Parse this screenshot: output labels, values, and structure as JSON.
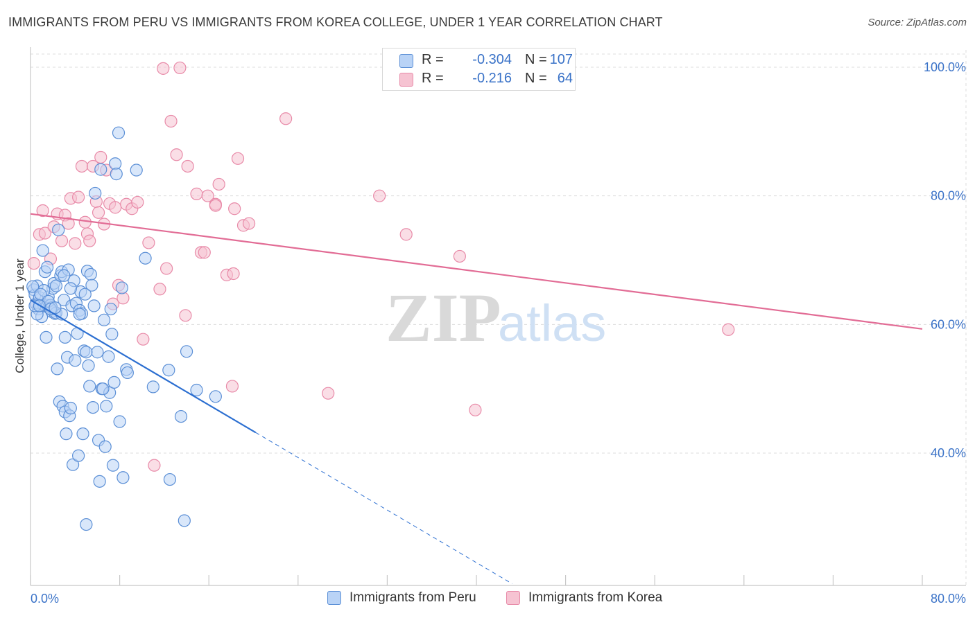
{
  "title": "IMMIGRANTS FROM PERU VS IMMIGRANTS FROM KOREA COLLEGE, UNDER 1 YEAR CORRELATION CHART",
  "source": "Source: ZipAtlas.com",
  "watermark": {
    "zip": "ZIP",
    "atlas": "atlas"
  },
  "legend": {
    "r_label": "R =",
    "n_label": "N =",
    "rows": [
      {
        "r": "-0.304",
        "n": "107"
      },
      {
        "r": "-0.216",
        "n": "64"
      }
    ]
  },
  "colors": {
    "peru_fill": "#b9d3f6",
    "peru_stroke": "#5b8fd6",
    "peru_line": "#2c6fd1",
    "korea_fill": "#f6c3d2",
    "korea_stroke": "#e88aa8",
    "korea_line": "#e26c95",
    "axis_label": "#3b73c8",
    "grid": "#dcdcdc"
  },
  "chart_data": {
    "type": "scatter",
    "title": "IMMIGRANTS FROM PERU VS IMMIGRANTS FROM KOREA COLLEGE, UNDER 1 YEAR CORRELATION CHART",
    "xlabel": "",
    "ylabel": "College, Under 1 year",
    "xlim": [
      0,
      80
    ],
    "ylim": [
      20,
      102
    ],
    "x_tick_labels": [
      "0.0%",
      "80.0%"
    ],
    "y_ticks": [
      40,
      60,
      80,
      100
    ],
    "y_tick_labels": [
      "40.0%",
      "60.0%",
      "80.0%",
      "100.0%"
    ],
    "legend_position": "bottom",
    "series": [
      {
        "name": "Immigrants from Peru",
        "R": -0.304,
        "N": 107,
        "trend": {
          "x0": 0,
          "y0": 63.8,
          "x1": 20.2,
          "y1": 43.2,
          "dash_to_x": 43.2,
          "dash_to_y": 19.7
        },
        "points": [
          [
            0.3,
            65.4
          ],
          [
            0.4,
            64.6
          ],
          [
            0.5,
            63.2
          ],
          [
            0.6,
            66.0
          ],
          [
            0.7,
            62.4
          ],
          [
            0.8,
            64.2
          ],
          [
            0.9,
            63.0
          ],
          [
            1.0,
            61.2
          ],
          [
            1.1,
            71.5
          ],
          [
            1.2,
            62.9
          ],
          [
            1.3,
            68.2
          ],
          [
            1.4,
            58.0
          ],
          [
            1.5,
            68.9
          ],
          [
            1.5,
            63.0
          ],
          [
            1.6,
            64.3
          ],
          [
            1.7,
            62.5
          ],
          [
            1.8,
            63.0
          ],
          [
            1.9,
            62.0
          ],
          [
            2.0,
            65.6
          ],
          [
            2.1,
            66.4
          ],
          [
            2.2,
            61.7
          ],
          [
            2.3,
            66.0
          ],
          [
            2.4,
            53.1
          ],
          [
            2.5,
            74.7
          ],
          [
            2.6,
            48.0
          ],
          [
            2.7,
            67.6
          ],
          [
            2.8,
            68.2
          ],
          [
            2.9,
            47.3
          ],
          [
            3.0,
            63.8
          ],
          [
            3.1,
            58.0
          ],
          [
            3.1,
            46.4
          ],
          [
            3.2,
            43.0
          ],
          [
            3.3,
            54.9
          ],
          [
            3.4,
            68.5
          ],
          [
            3.5,
            45.8
          ],
          [
            3.6,
            47.0
          ],
          [
            3.7,
            62.9
          ],
          [
            3.8,
            38.2
          ],
          [
            3.9,
            66.8
          ],
          [
            4.0,
            54.4
          ],
          [
            4.1,
            63.3
          ],
          [
            4.2,
            58.6
          ],
          [
            4.3,
            39.6
          ],
          [
            4.4,
            62.2
          ],
          [
            4.5,
            65.1
          ],
          [
            4.6,
            61.7
          ],
          [
            4.7,
            43.0
          ],
          [
            4.8,
            55.9
          ],
          [
            4.9,
            64.7
          ],
          [
            5.0,
            28.9
          ],
          [
            5.1,
            68.3
          ],
          [
            5.2,
            53.6
          ],
          [
            5.3,
            50.4
          ],
          [
            5.4,
            67.8
          ],
          [
            5.5,
            66.1
          ],
          [
            5.6,
            47.1
          ],
          [
            5.7,
            62.9
          ],
          [
            5.8,
            80.4
          ],
          [
            6.0,
            55.7
          ],
          [
            6.1,
            42.0
          ],
          [
            6.2,
            35.6
          ],
          [
            6.3,
            84.1
          ],
          [
            6.4,
            50.0
          ],
          [
            6.6,
            60.7
          ],
          [
            6.7,
            41.0
          ],
          [
            6.8,
            47.3
          ],
          [
            7.0,
            55.0
          ],
          [
            7.1,
            49.4
          ],
          [
            7.2,
            62.4
          ],
          [
            7.3,
            58.5
          ],
          [
            7.4,
            38.1
          ],
          [
            7.5,
            51.0
          ],
          [
            7.6,
            85.0
          ],
          [
            7.7,
            83.4
          ],
          [
            7.9,
            89.8
          ],
          [
            8.0,
            44.9
          ],
          [
            8.2,
            65.7
          ],
          [
            8.3,
            36.2
          ],
          [
            8.6,
            53.0
          ],
          [
            8.7,
            52.5
          ],
          [
            9.5,
            84.0
          ],
          [
            10.3,
            70.3
          ],
          [
            11.0,
            50.3
          ],
          [
            12.4,
            52.9
          ],
          [
            12.5,
            35.9
          ],
          [
            13.5,
            45.7
          ],
          [
            13.8,
            29.5
          ],
          [
            14.0,
            55.8
          ],
          [
            14.9,
            49.8
          ],
          [
            16.6,
            48.8
          ],
          [
            0.2,
            65.9
          ],
          [
            0.6,
            61.6
          ],
          [
            1.2,
            65.3
          ],
          [
            1.9,
            62.6
          ],
          [
            2.3,
            61.8
          ],
          [
            3.0,
            67.6
          ],
          [
            3.6,
            65.6
          ],
          [
            4.4,
            61.6
          ],
          [
            0.9,
            64.7
          ],
          [
            1.6,
            63.6
          ],
          [
            2.8,
            61.6
          ],
          [
            5.0,
            55.7
          ],
          [
            6.5,
            50.0
          ],
          [
            0.4,
            62.9
          ],
          [
            0.8,
            62.9
          ],
          [
            1.8,
            62.4
          ],
          [
            2.2,
            62.6
          ]
        ]
      },
      {
        "name": "Immigrants from Korea",
        "R": -0.216,
        "N": 64,
        "trend": {
          "x0": 0,
          "y0": 77.2,
          "x1": 80,
          "y1": 59.3
        },
        "points": [
          [
            0.3,
            69.5
          ],
          [
            0.5,
            63.2
          ],
          [
            0.8,
            74.0
          ],
          [
            1.1,
            77.7
          ],
          [
            1.3,
            74.2
          ],
          [
            1.8,
            70.2
          ],
          [
            2.1,
            75.2
          ],
          [
            2.4,
            77.2
          ],
          [
            2.8,
            73.0
          ],
          [
            3.1,
            77.0
          ],
          [
            3.4,
            75.7
          ],
          [
            3.6,
            79.6
          ],
          [
            4.0,
            72.6
          ],
          [
            4.3,
            79.8
          ],
          [
            4.6,
            84.6
          ],
          [
            4.9,
            75.9
          ],
          [
            5.1,
            74.1
          ],
          [
            5.3,
            73.0
          ],
          [
            5.6,
            84.6
          ],
          [
            5.9,
            79.1
          ],
          [
            6.1,
            77.4
          ],
          [
            6.3,
            86.0
          ],
          [
            6.6,
            75.6
          ],
          [
            6.8,
            84.0
          ],
          [
            7.1,
            78.8
          ],
          [
            7.4,
            63.2
          ],
          [
            7.6,
            78.2
          ],
          [
            7.9,
            66.1
          ],
          [
            8.3,
            64.1
          ],
          [
            8.6,
            78.7
          ],
          [
            9.1,
            78.0
          ],
          [
            9.6,
            79.0
          ],
          [
            10.1,
            57.7
          ],
          [
            10.6,
            72.7
          ],
          [
            11.1,
            38.1
          ],
          [
            11.6,
            65.5
          ],
          [
            11.9,
            99.8
          ],
          [
            12.2,
            68.7
          ],
          [
            12.6,
            91.6
          ],
          [
            13.1,
            86.4
          ],
          [
            13.4,
            99.9
          ],
          [
            13.9,
            61.4
          ],
          [
            14.1,
            84.6
          ],
          [
            14.9,
            80.3
          ],
          [
            15.3,
            71.2
          ],
          [
            15.6,
            71.2
          ],
          [
            15.9,
            80.0
          ],
          [
            16.6,
            78.7
          ],
          [
            16.9,
            81.8
          ],
          [
            17.6,
            67.7
          ],
          [
            18.1,
            50.4
          ],
          [
            18.3,
            78.0
          ],
          [
            18.6,
            85.8
          ],
          [
            19.1,
            75.4
          ],
          [
            19.6,
            75.7
          ],
          [
            22.9,
            92.0
          ],
          [
            26.7,
            49.3
          ],
          [
            31.3,
            80.0
          ],
          [
            33.7,
            74.0
          ],
          [
            38.5,
            70.6
          ],
          [
            39.9,
            46.7
          ],
          [
            62.6,
            59.2
          ],
          [
            18.2,
            67.9
          ],
          [
            16.6,
            78.5
          ]
        ]
      }
    ]
  }
}
